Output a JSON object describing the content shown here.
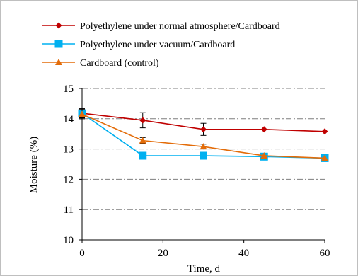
{
  "chart_data": {
    "type": "line",
    "x": [
      0,
      15,
      30,
      45,
      60
    ],
    "xlabel": "Time, d",
    "ylabel": "Moisture (%)",
    "xlim": [
      0,
      60
    ],
    "ylim": [
      10,
      15
    ],
    "xticks": [
      "0",
      "20",
      "40",
      "60"
    ],
    "yticks": [
      "10",
      "11",
      "12",
      "13",
      "14",
      "15"
    ],
    "grid": "horizontal dash-dot",
    "legend_position": "top-left",
    "series": [
      {
        "name": "Polyethylene under normal atmosphere/Cardboard",
        "values": [
          14.18,
          13.95,
          13.65,
          13.65,
          13.58
        ],
        "errors": [
          0.15,
          0.25,
          0.2,
          0.0,
          0.0
        ],
        "color": "#c00000",
        "marker": "diamond"
      },
      {
        "name": "Polyethylene under vacuum/Cardboard",
        "values": [
          14.18,
          12.78,
          12.78,
          12.75,
          12.7
        ],
        "errors": [
          0.15,
          0.0,
          0.0,
          0.0,
          0.0
        ],
        "color": "#00b0f0",
        "marker": "square"
      },
      {
        "name": "Cardboard (control)",
        "values": [
          14.15,
          13.28,
          13.08,
          12.78,
          12.7
        ],
        "errors": [
          0.15,
          0.1,
          0.08,
          0.0,
          0.0
        ],
        "color": "#e36c09",
        "marker": "triangle"
      }
    ]
  }
}
